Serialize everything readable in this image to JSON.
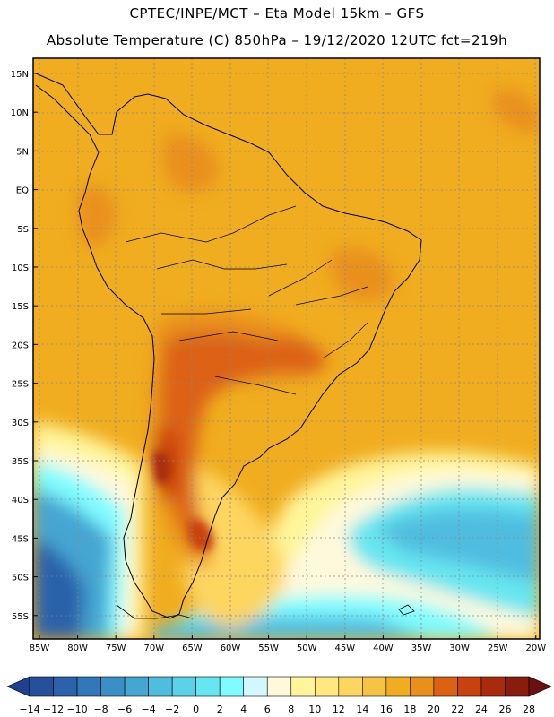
{
  "header": {
    "line1": "CPTEC/INPE/MCT –  Eta Model 15km – GFS",
    "line2": "Absolute Temperature (C) 850hPa – 19/12/2020 12UTC fct=219h"
  },
  "map": {
    "lat_labels": [
      "15N",
      "10N",
      "5N",
      "EQ",
      "5S",
      "10S",
      "15S",
      "20S",
      "25S",
      "30S",
      "35S",
      "40S",
      "45S",
      "50S",
      "55S"
    ],
    "lon_labels": [
      "85W",
      "80W",
      "75W",
      "70W",
      "65W",
      "60W",
      "55W",
      "50W",
      "45W",
      "40W",
      "35W",
      "30W",
      "25W",
      "20W"
    ]
  },
  "colorbar": {
    "labels": [
      "-14",
      "-12",
      "-10",
      "-8",
      "-6",
      "-4",
      "-2",
      "0",
      "2",
      "4",
      "6",
      "8",
      "10",
      "12",
      "14",
      "16",
      "18",
      "20",
      "22",
      "24",
      "26",
      "28"
    ],
    "colors": [
      "#1f3f8f",
      "#24509c",
      "#2b62aa",
      "#3278b8",
      "#3b8ec6",
      "#45a6d2",
      "#4fbde0",
      "#5ad2e8",
      "#66e6f0",
      "#7ffcff",
      "#d4f8ff",
      "#fff9dc",
      "#fff59a",
      "#ffe880",
      "#fdd660",
      "#f6c445",
      "#f0ad1f",
      "#e9901a",
      "#dc6213",
      "#c8420f",
      "#a82c0c",
      "#8a1c0e",
      "#6b1010"
    ]
  }
}
